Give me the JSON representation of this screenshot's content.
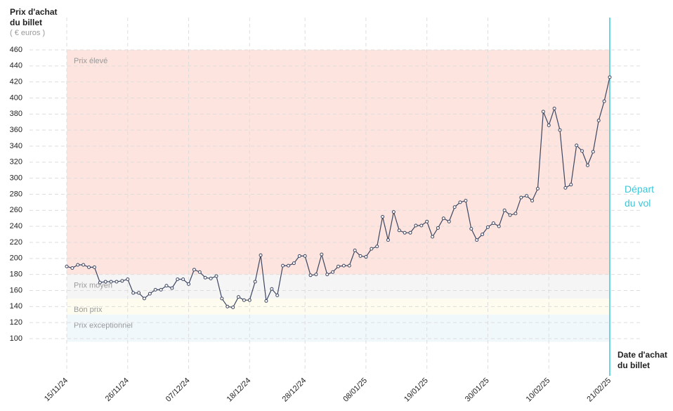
{
  "chart_data": {
    "type": "line",
    "y_title": "Prix d'achat du billet",
    "y_unit": "( € euros )",
    "x_title": "Date d'achat du billet",
    "marker_label": "Départ du vol",
    "marker_date": "21/02/25",
    "marker_color": "#3ec6d8",
    "x": [
      "15/11/24",
      "16/11/24",
      "17/11/24",
      "18/11/24",
      "19/11/24",
      "20/11/24",
      "21/11/24",
      "22/11/24",
      "23/11/24",
      "24/11/24",
      "25/11/24",
      "26/11/24",
      "27/11/24",
      "28/11/24",
      "29/11/24",
      "30/11/24",
      "01/12/24",
      "02/12/24",
      "03/12/24",
      "04/12/24",
      "05/12/24",
      "06/12/24",
      "07/12/24",
      "08/12/24",
      "09/12/24",
      "10/12/24",
      "11/12/24",
      "12/12/24",
      "13/12/24",
      "14/12/24",
      "15/12/24",
      "16/12/24",
      "17/12/24",
      "18/12/24",
      "19/12/24",
      "20/12/24",
      "21/12/24",
      "22/12/24",
      "23/12/24",
      "24/12/24",
      "25/12/24",
      "26/12/24",
      "27/12/24",
      "28/12/24",
      "29/12/24",
      "30/12/24",
      "31/12/24",
      "01/01/25",
      "02/01/25",
      "03/01/25",
      "04/01/25",
      "05/01/25",
      "06/01/25",
      "07/01/25",
      "08/01/25",
      "09/01/25",
      "10/01/25",
      "11/01/25",
      "12/01/25",
      "13/01/25",
      "14/01/25",
      "15/01/25",
      "16/01/25",
      "17/01/25",
      "18/01/25",
      "19/01/25",
      "20/01/25",
      "21/01/25",
      "22/01/25",
      "23/01/25",
      "24/01/25",
      "25/01/25",
      "26/01/25",
      "27/01/25",
      "28/01/25",
      "29/01/25",
      "30/01/25",
      "31/01/25",
      "01/02/25",
      "02/02/25",
      "03/02/25",
      "04/02/25",
      "05/02/25",
      "06/02/25",
      "07/02/25",
      "08/02/25",
      "09/02/25",
      "10/02/25",
      "11/02/25",
      "12/02/25",
      "13/02/25",
      "14/02/25",
      "15/02/25",
      "16/02/25",
      "17/02/25",
      "18/02/25",
      "19/02/25",
      "20/02/25",
      "21/02/25"
    ],
    "series": [
      {
        "color": "#3d4660",
        "values": [
          190,
          188,
          192,
          192,
          189,
          189,
          170,
          171,
          171,
          171,
          172,
          174,
          157,
          157,
          150,
          156,
          161,
          161,
          166,
          163,
          174,
          174,
          168,
          186,
          183,
          176,
          175,
          178,
          150,
          140,
          139,
          152,
          148,
          148,
          171,
          204,
          147,
          162,
          154,
          191,
          191,
          194,
          203,
          203,
          179,
          180,
          205,
          180,
          183,
          190,
          191,
          191,
          210,
          203,
          202,
          212,
          215,
          252,
          223,
          258,
          235,
          232,
          232,
          241,
          241,
          246,
          227,
          238,
          250,
          246,
          264,
          270,
          272,
          237,
          223,
          230,
          239,
          244,
          240,
          260,
          254,
          256,
          276,
          278,
          272,
          287,
          383,
          366,
          387,
          360,
          288,
          292,
          341,
          334,
          316,
          333,
          372,
          396,
          426
        ]
      }
    ],
    "xticks": [
      "15/11/24",
      "26/11/24",
      "07/12/24",
      "18/12/24",
      "28/12/24",
      "08/01/25",
      "19/01/25",
      "30/01/25",
      "10/02/25",
      "21/02/25"
    ],
    "ylim": [
      96,
      460
    ],
    "yticks": [
      100,
      120,
      140,
      160,
      180,
      200,
      220,
      240,
      260,
      280,
      300,
      320,
      340,
      360,
      380,
      400,
      420,
      440,
      460
    ],
    "grid": true,
    "bands": [
      {
        "name": "Prix élevé",
        "from": 180,
        "to": 460,
        "color": "#fde4df"
      },
      {
        "name": "Prix moyen",
        "from": 150,
        "to": 180,
        "color": "#f5f5f6"
      },
      {
        "name": "Bon prix",
        "from": 130,
        "to": 150,
        "color": "#fdfcef"
      },
      {
        "name": "Prix exceptionnel",
        "from": 96,
        "to": 130,
        "color": "#f1f8fc"
      }
    ]
  }
}
